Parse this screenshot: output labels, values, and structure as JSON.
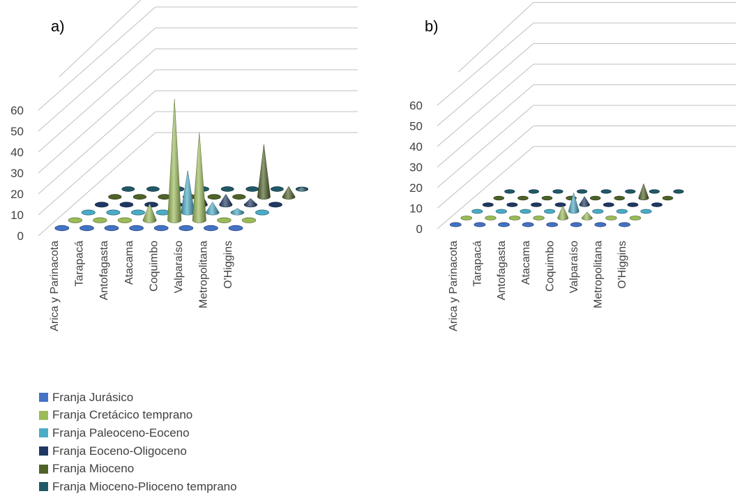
{
  "colors": {
    "axis": "#bfbfbf",
    "text": "#404040",
    "floor": "#d9d9d9"
  },
  "chart_data": [
    {
      "type": "bar",
      "subtype": "3d-cone",
      "panel_label": "a)",
      "ylim": [
        0,
        60
      ],
      "yticks": [
        "0",
        "10",
        "20",
        "30",
        "40",
        "50",
        "60"
      ],
      "categories": [
        "Arica y Parinacota",
        "Tarapacá",
        "Antofagasta",
        "Atacama",
        "Coquimbo",
        "Valparaíso",
        "Metropolitana",
        "O'Higgins"
      ],
      "series": [
        {
          "name": "Franja Jurásico",
          "color": "#4472c4",
          "values": [
            0,
            0,
            0,
            0,
            0,
            0,
            0,
            0
          ]
        },
        {
          "name": "Franja Cretácico temprano",
          "color": "#9bbb59",
          "values": [
            0,
            0,
            0,
            8,
            58,
            42,
            0,
            0
          ]
        },
        {
          "name": "Franja Paleoceno-Eoceno",
          "color": "#4bacc6",
          "values": [
            0,
            0,
            0,
            0,
            20,
            5,
            2,
            0
          ]
        },
        {
          "name": "Franja Eoceno-Oligoceno",
          "color": "#1f3864",
          "values": [
            0,
            0,
            0,
            2,
            6,
            5,
            3,
            0
          ]
        },
        {
          "name": "Franja Mioceno",
          "color": "#4f6228",
          "values": [
            0,
            0,
            0,
            0,
            0,
            0,
            25,
            5
          ]
        },
        {
          "name": "Franja Mioceno-Plioceno temprano",
          "color": "#215968",
          "values": [
            0,
            0,
            0,
            0,
            0,
            0,
            0,
            1
          ]
        }
      ]
    },
    {
      "type": "bar",
      "subtype": "3d-cone",
      "panel_label": "b)",
      "ylim": [
        0,
        60
      ],
      "yticks": [
        "0",
        "10",
        "20",
        "30",
        "40",
        "50",
        "60"
      ],
      "categories": [
        "Arica y Parinacota",
        "Tarapacá",
        "Antofagasta",
        "Atacama",
        "Coquimbo",
        "Valparaíso",
        "Metropolitana",
        "O'Higgins"
      ],
      "series": [
        {
          "name": "Franja Jurásico",
          "color": "#4472c4",
          "values": [
            0,
            0,
            0,
            0,
            0,
            0,
            0,
            0
          ]
        },
        {
          "name": "Franja Cretácico temprano",
          "color": "#9bbb59",
          "values": [
            0,
            0,
            0,
            0,
            6,
            3,
            0,
            0
          ]
        },
        {
          "name": "Franja Paleoceno-Eoceno",
          "color": "#4bacc6",
          "values": [
            0,
            0,
            0,
            0,
            9,
            0,
            0,
            0
          ]
        },
        {
          "name": "Franja Eoceno-Oligoceno",
          "color": "#1f3864",
          "values": [
            0,
            0,
            0,
            0,
            4,
            0,
            0,
            0
          ]
        },
        {
          "name": "Franja Mioceno",
          "color": "#4f6228",
          "values": [
            0,
            0,
            0,
            0,
            0,
            0,
            7,
            0
          ]
        },
        {
          "name": "Franja Mioceno-Plioceno temprano",
          "color": "#215968",
          "values": [
            0,
            0,
            0,
            0,
            0,
            0,
            0,
            0
          ]
        }
      ]
    }
  ],
  "legend": {
    "items": [
      {
        "label": "Franja Jurásico",
        "color": "#4472c4"
      },
      {
        "label": "Franja Cretácico temprano",
        "color": "#9bbb59"
      },
      {
        "label": "Franja Paleoceno-Eoceno",
        "color": "#4bacc6"
      },
      {
        "label": "Franja Eoceno-Oligoceno",
        "color": "#1f3864"
      },
      {
        "label": "Franja Mioceno",
        "color": "#4f6228"
      },
      {
        "label": "Franja Mioceno-Plioceno temprano",
        "color": "#215968"
      }
    ]
  }
}
